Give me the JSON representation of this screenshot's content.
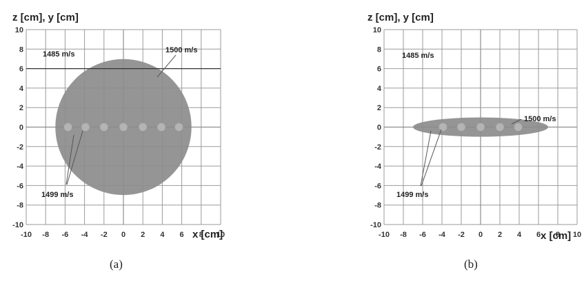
{
  "panels": [
    {
      "id": "a",
      "title": "z [cm], y [cm]",
      "x_label": "x [cm]",
      "caption": "(a)",
      "x_ticks": [
        "-10",
        "-8",
        "-6",
        "-4",
        "-2",
        "0",
        "2",
        "4",
        "6",
        "8",
        "10"
      ],
      "y_ticks": [
        "10",
        "8",
        "6",
        "4",
        "2",
        "0",
        "-2",
        "-4",
        "-6",
        "-8",
        "-10"
      ],
      "labels": {
        "background": "1485 m/s",
        "inclusion": "1500 m/s",
        "elements": "1499 m/s"
      },
      "inclusion_shape": "circle",
      "inclusion_center": [
        0,
        0
      ],
      "inclusion_radii": [
        7,
        7
      ],
      "boundary_line_z": 6,
      "element_x": [
        -5.7,
        -3.9,
        -2,
        0,
        2,
        3.9,
        5.7
      ],
      "colors": {
        "inclusion": "#8c8c8c",
        "elements": "#b4b4b4"
      }
    },
    {
      "id": "b",
      "title": "z [cm], y [cm]",
      "x_label": "x [cm]",
      "caption": "(b)",
      "x_ticks": [
        "-10",
        "-8",
        "-6",
        "-4",
        "-2",
        "0",
        "2",
        "4",
        "6",
        "8",
        "10"
      ],
      "y_ticks": [
        "10",
        "8",
        "6",
        "4",
        "2",
        "0",
        "-2",
        "-4",
        "-6",
        "-8",
        "-10"
      ],
      "labels": {
        "background": "1485 m/s",
        "inclusion": "1500 m/s",
        "elements": "1499 m/s"
      },
      "inclusion_shape": "ellipse",
      "inclusion_center": [
        0,
        0
      ],
      "inclusion_radii": [
        7,
        1
      ],
      "element_x": [
        -3.9,
        -2,
        0,
        2,
        3.9
      ],
      "colors": {
        "inclusion": "#8c8c8c",
        "elements": "#b4b4b4"
      }
    }
  ]
}
